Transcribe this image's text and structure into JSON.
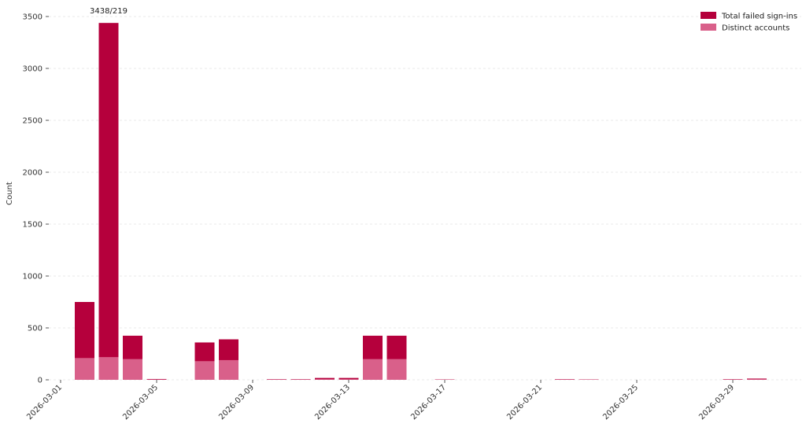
{
  "chart_data": {
    "type": "bar",
    "ylabel": "Count",
    "ylim": [
      0,
      3500
    ],
    "yticks": [
      0,
      500,
      1000,
      1500,
      2000,
      2500,
      3000,
      3500
    ],
    "grid": "horizontal dashed",
    "legend_position": "top-right",
    "x_tick_labels": [
      "2026-03-01",
      "2026-03-05",
      "2026-03-09",
      "2026-03-13",
      "2026-03-17",
      "2026-03-21",
      "2026-03-25",
      "2026-03-29"
    ],
    "categories": [
      "2026-03-01",
      "2026-03-02",
      "2026-03-03",
      "2026-03-04",
      "2026-03-05",
      "2026-03-06",
      "2026-03-07",
      "2026-03-08",
      "2026-03-09",
      "2026-03-10",
      "2026-03-11",
      "2026-03-12",
      "2026-03-13",
      "2026-03-14",
      "2026-03-15",
      "2026-03-16",
      "2026-03-17",
      "2026-03-18",
      "2026-03-19",
      "2026-03-20",
      "2026-03-21",
      "2026-03-22",
      "2026-03-23",
      "2026-03-24",
      "2026-03-25",
      "2026-03-26",
      "2026-03-27",
      "2026-03-28",
      "2026-03-29",
      "2026-03-30"
    ],
    "series": [
      {
        "name": "Total failed sign-ins",
        "color": "#b5003c",
        "values": [
          0,
          750,
          3438,
          425,
          8,
          0,
          360,
          390,
          0,
          6,
          6,
          18,
          18,
          425,
          425,
          0,
          4,
          0,
          0,
          0,
          0,
          6,
          4,
          0,
          0,
          0,
          0,
          0,
          6,
          12
        ]
      },
      {
        "name": "Distinct accounts",
        "color": "#d9608a",
        "values": [
          0,
          210,
          219,
          200,
          4,
          0,
          180,
          190,
          0,
          3,
          3,
          6,
          6,
          200,
          200,
          0,
          2,
          0,
          0,
          0,
          0,
          3,
          2,
          0,
          0,
          0,
          0,
          0,
          3,
          6
        ]
      }
    ],
    "annotations": [
      {
        "category": "2026-03-03",
        "text": "3438/219"
      }
    ]
  }
}
